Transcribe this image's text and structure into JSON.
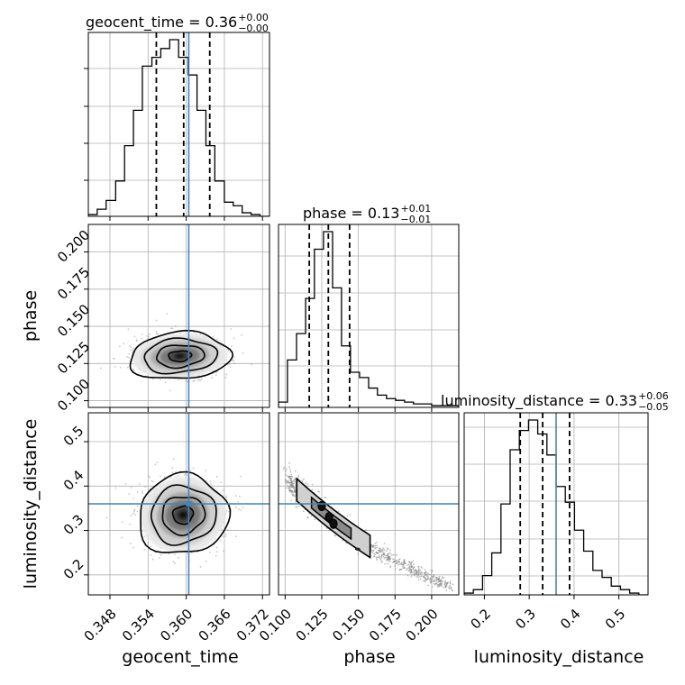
{
  "chart_data": {
    "type": "corner",
    "variables": [
      "geocent_time",
      "phase",
      "luminosity_distance"
    ],
    "axis_titles": {
      "x": [
        "geocent_time",
        "phase",
        "luminosity_distance"
      ],
      "y": [
        "phase",
        "luminosity_distance"
      ]
    },
    "panel_titles": [
      {
        "base": "geocent_time = 0.36",
        "sup": "+0.00",
        "sub": "−0.00"
      },
      {
        "base": "phase = 0.13",
        "sup": "+0.01",
        "sub": "−0.01"
      },
      {
        "base": "luminosity_distance = 0.33",
        "sup": "+0.06",
        "sub": "−0.05"
      }
    ],
    "ranges": {
      "geocent_time": [
        0.3446,
        0.3731
      ],
      "phase": [
        0.0955,
        0.2185
      ],
      "luminosity_distance": [
        0.155,
        0.565
      ]
    },
    "ticks": {
      "geocent_time": [
        0.348,
        0.354,
        0.36,
        0.366,
        0.372
      ],
      "geocent_time_labels": [
        "0.348",
        "0.354",
        "0.360",
        "0.366",
        "0.372"
      ],
      "phase_x": [
        0.1,
        0.125,
        0.15,
        0.175,
        0.2
      ],
      "phase_x_labels": [
        "0.100",
        "0.125",
        "0.150",
        "0.175",
        "0.200"
      ],
      "phase_y": [
        0.125,
        0.15,
        0.175,
        0.2
      ],
      "phase_y_labels": [
        "0.125",
        "0.150",
        "0.175",
        "0.200"
      ],
      "phase_y_extra": [
        0.1
      ],
      "phase_y_extra_labels": [
        "0.100"
      ],
      "luminosity_distance": [
        0.2,
        0.3,
        0.4,
        0.5
      ],
      "luminosity_distance_labels": [
        "0.2",
        "0.3",
        "0.4",
        "0.5"
      ]
    },
    "truths": {
      "geocent_time": 0.3604,
      "luminosity_distance": 0.36
    },
    "quantiles": {
      "geocent_time": [
        0.3553,
        0.3596,
        0.3637
      ],
      "phase": [
        0.1165,
        0.1295,
        0.144
      ],
      "luminosity_distance": [
        0.28,
        0.33,
        0.39
      ]
    },
    "histograms": {
      "geocent_time": {
        "edges": [
          0.3446,
          0.346,
          0.3474,
          0.3489,
          0.3503,
          0.3517,
          0.3531,
          0.3546,
          0.356,
          0.3574,
          0.3588,
          0.3603,
          0.3617,
          0.3631,
          0.3645,
          0.366,
          0.3674,
          0.3688,
          0.3702,
          0.3716,
          0.3731
        ],
        "counts": [
          1,
          4,
          9,
          20,
          40,
          60,
          85,
          90,
          95,
          100,
          90,
          80,
          60,
          40,
          20,
          8,
          6,
          2,
          1,
          0
        ]
      },
      "phase": {
        "edges": [
          0.0955,
          0.1016,
          0.1078,
          0.114,
          0.12,
          0.1262,
          0.1324,
          0.1385,
          0.1446,
          0.1508,
          0.157,
          0.163,
          0.1692,
          0.1754,
          0.1815,
          0.1876,
          0.1938,
          0.2,
          0.206,
          0.2122,
          0.2185
        ],
        "counts": [
          3,
          27,
          42,
          62,
          90,
          100,
          68,
          35,
          20,
          17,
          11,
          7,
          5,
          4,
          3,
          2,
          2,
          1,
          1,
          1
        ]
      },
      "luminosity_distance": {
        "edges": [
          0.155,
          0.1755,
          0.196,
          0.2165,
          0.237,
          0.2575,
          0.278,
          0.2985,
          0.319,
          0.3395,
          0.36,
          0.3805,
          0.401,
          0.4215,
          0.442,
          0.4625,
          0.483,
          0.5035,
          0.524,
          0.5445,
          0.565
        ],
        "counts": [
          1,
          3,
          11,
          24,
          52,
          83,
          94,
          100,
          92,
          80,
          62,
          53,
          37,
          25,
          14,
          10,
          5,
          3,
          1,
          0
        ]
      }
    },
    "grid": true
  }
}
